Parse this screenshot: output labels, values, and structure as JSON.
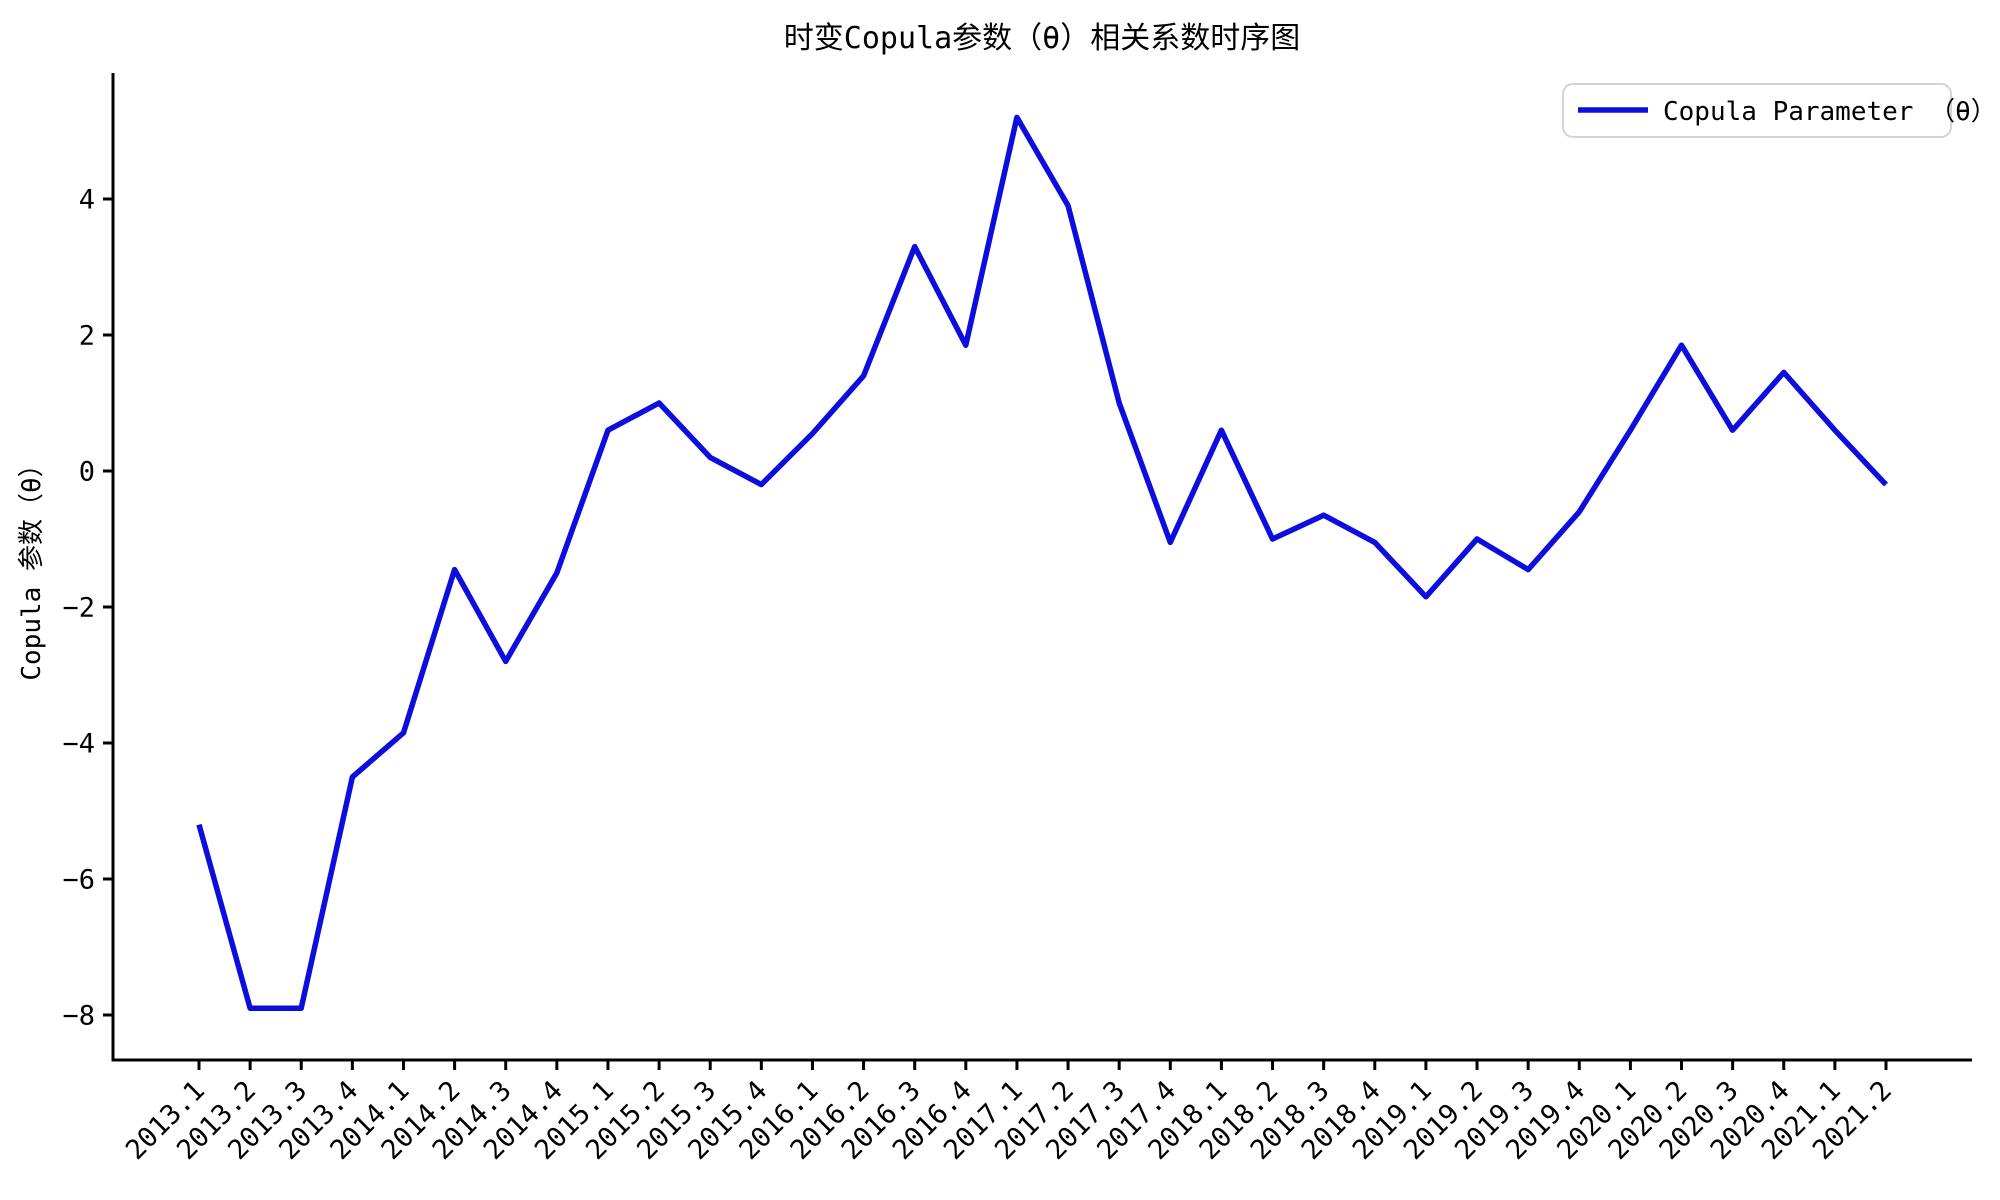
{
  "title": "时变Copula参数（θ）相关系数时序图",
  "legend": {
    "label": "Copula Parameter （θ）"
  },
  "y_axis": {
    "label": "Copula 参数（θ）",
    "tick_labels": [
      "4",
      "2",
      "0",
      "−2",
      "−4",
      "−6",
      "−8"
    ],
    "tick_values": [
      4,
      2,
      0,
      -2,
      -4,
      -6,
      -8
    ]
  },
  "colors": {
    "line": "#0d0ddd",
    "axis": "#000000",
    "legend_border": "#d4d4d4"
  },
  "chart_data": {
    "type": "line",
    "title": "时变Copula参数（θ）相关系数时序图",
    "xlabel": "",
    "ylabel": "Copula 参数（θ）",
    "categories": [
      "2013.1",
      "2013.2",
      "2013.3",
      "2013.4",
      "2014.1",
      "2014.2",
      "2014.3",
      "2014.4",
      "2015.1",
      "2015.2",
      "2015.3",
      "2015.4",
      "2016.1",
      "2016.2",
      "2016.3",
      "2016.4",
      "2017.1",
      "2017.2",
      "2017.3",
      "2017.4",
      "2018.1",
      "2018.2",
      "2018.3",
      "2018.4",
      "2019.1",
      "2019.2",
      "2019.3",
      "2019.4",
      "2020.1",
      "2020.2",
      "2020.3",
      "2020.4",
      "2021.1",
      "2021.2"
    ],
    "series": [
      {
        "name": "Copula Parameter （θ）",
        "color": "#0d0ddd",
        "values": [
          -5.2,
          -7.9,
          -7.9,
          -4.5,
          -3.85,
          -1.45,
          -2.8,
          -1.5,
          0.6,
          1.0,
          0.2,
          -0.2,
          0.55,
          1.4,
          3.3,
          1.85,
          5.2,
          3.9,
          1.0,
          -1.05,
          0.6,
          -1.0,
          -0.65,
          -1.05,
          -1.85,
          -1.0,
          -1.45,
          -0.6,
          0.6,
          1.85,
          0.6,
          1.45,
          0.6,
          -0.2
        ]
      }
    ],
    "ylim": [
      -8.7,
      5.85
    ],
    "yticks": [
      4,
      2,
      0,
      -2,
      -4,
      -6,
      -8
    ],
    "grid": false,
    "legend_position": "upper right",
    "x_tick_rotation": 45
  }
}
